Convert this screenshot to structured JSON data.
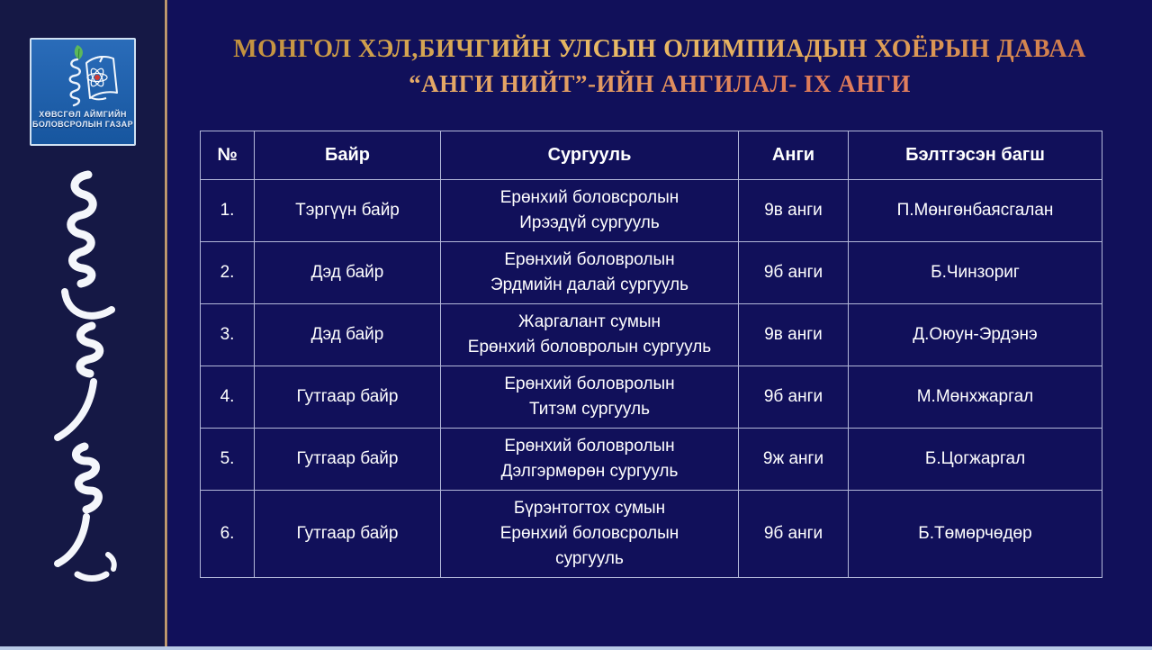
{
  "page": {
    "title_line1": "МОНГОЛ ХЭЛ,БИЧГИЙН УЛСЫН ОЛИМПИАДЫН ХОЁРЫН ДАВАА",
    "title_line2": "“АНГИ НИЙТ”-ИЙН АНГИЛАЛ- IX АНГИ"
  },
  "logo": {
    "line1": "ХӨВСГӨЛ АЙМГИЙН",
    "line2": "БОЛОВСРОЛЫН ГАЗАР"
  },
  "decorations": {
    "sidebar_script": "traditional-mongolian-vertical-script",
    "logo_icons": [
      "leaf-icon",
      "mongol-script-icon",
      "open-book-icon",
      "atom-icon"
    ]
  },
  "colors": {
    "background": "#11105a",
    "sidebar_background": "#151845",
    "divider_line": "#e6bd8e",
    "bottom_strip": "#b7c9e6",
    "table_border": "#b3b8d9",
    "title_gold": "#e9ba66",
    "title_red": "#de7b58",
    "logo_blue": "#1d61ad",
    "text": "#ffffff"
  },
  "table": {
    "headers": [
      "№",
      "Байр",
      "Сургууль",
      "Анги",
      "Бэлтгэсэн багш"
    ],
    "rows": [
      {
        "num": "1.",
        "place": "Тэргүүн байр",
        "school": "Ерөнхий боловсролын\nИрээдүй сургууль",
        "grade": "9в анги",
        "teacher": "П.Мөнгөнбаясгалан"
      },
      {
        "num": "2.",
        "place": "Дэд байр",
        "school": "Ерөнхий боловролын\nЭрдмийн далай сургууль",
        "grade": "9б анги",
        "teacher": "Б.Чинзориг"
      },
      {
        "num": "3.",
        "place": "Дэд байр",
        "school": "Жаргалант сумын\nЕрөнхий боловролын сургууль",
        "grade": "9в анги",
        "teacher": "Д.Оюун-Эрдэнэ"
      },
      {
        "num": "4.",
        "place": "Гутгаар байр",
        "school": "Ерөнхий боловролын\nТитэм сургууль",
        "grade": "9б анги",
        "teacher": "М.Мөнхжаргал"
      },
      {
        "num": "5.",
        "place": "Гутгаар байр",
        "school": "Ерөнхий боловролын\nДэлгэрмөрөн сургууль",
        "grade": "9ж анги",
        "teacher": "Б.Цогжаргал"
      },
      {
        "num": "6.",
        "place": "Гутгаар байр",
        "school": "Бүрэнтогтох сумын\nЕрөнхий боловсролын\nсургууль",
        "grade": "9б анги",
        "teacher": "Б.Төмөрчөдөр"
      }
    ]
  }
}
